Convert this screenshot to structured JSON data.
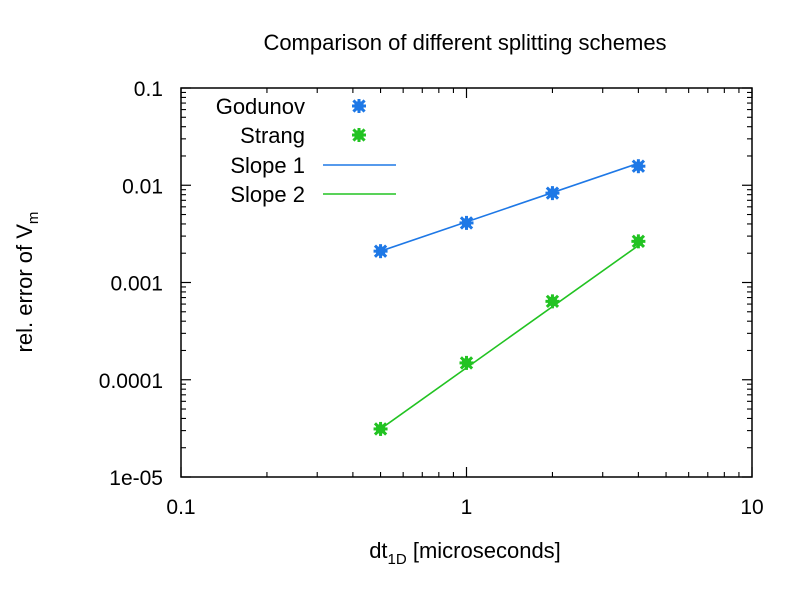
{
  "chart_data": {
    "type": "scatter",
    "title": "Comparison of different splitting schemes",
    "xlabel": {
      "base": "dt",
      "subscript": "1D",
      "rest": " [microseconds]"
    },
    "ylabel": {
      "base": "rel. error of V",
      "subscript": "m"
    },
    "x_scale": "log",
    "y_scale": "log",
    "xlim": [
      0.1,
      10
    ],
    "ylim": [
      1e-05,
      0.1
    ],
    "x_ticks": [
      {
        "value": 0.1,
        "label": "0.1"
      },
      {
        "value": 1,
        "label": "1"
      },
      {
        "value": 10,
        "label": "10"
      }
    ],
    "y_ticks": [
      {
        "value": 0.1,
        "label": "0.1"
      },
      {
        "value": 0.01,
        "label": "0.01"
      },
      {
        "value": 0.001,
        "label": "0.001"
      },
      {
        "value": 0.0001,
        "label": "0.0001"
      },
      {
        "value": 1e-05,
        "label": "1e-05"
      }
    ],
    "grid": false,
    "legend_position": "top-left",
    "series": [
      {
        "name": "Godunov",
        "kind": "points",
        "color": "#1e78e6",
        "x": [
          0.5,
          1,
          2,
          4
        ],
        "y": [
          0.0021,
          0.0041,
          0.0083,
          0.0157
        ]
      },
      {
        "name": "Strang",
        "kind": "points",
        "color": "#22c322",
        "x": [
          0.5,
          1,
          2,
          4
        ],
        "y": [
          3.12e-05,
          0.000149,
          0.00064,
          0.00265
        ]
      },
      {
        "name": "Slope 1",
        "kind": "line",
        "color": "#1e78e6",
        "x": [
          0.5,
          4
        ],
        "y": [
          0.0021,
          0.0168
        ]
      },
      {
        "name": "Slope 2",
        "kind": "line",
        "color": "#22c322",
        "x": [
          0.5,
          4
        ],
        "y": [
          3.12e-05,
          0.0024
        ]
      }
    ]
  }
}
